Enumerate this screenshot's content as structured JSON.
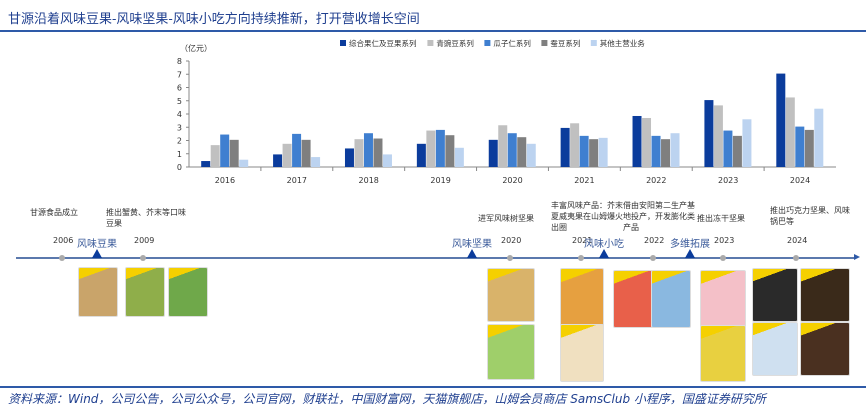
{
  "title": "甘源沿着风味豆果-风味坚果-风味小吃方向持续推新，打开营收增长空间",
  "source": "资料来源：Wind，公司公告，公司公众号，公司官网，财联社，中国财富网，天猫旗舰店，山姆会员商店 SamsClub 小程序，国盛证券研究所",
  "chart_data": {
    "type": "bar",
    "ylabel": "（亿元）",
    "ylim": [
      0,
      8
    ],
    "yticks": [
      0,
      1,
      2,
      3,
      4,
      5,
      6,
      7,
      8
    ],
    "grid": false,
    "legend": "top",
    "categories": [
      "2016",
      "2017",
      "2018",
      "2019",
      "2020",
      "2021",
      "2022",
      "2023",
      "2024"
    ],
    "series": [
      {
        "name": "综合果仁及豆果系列",
        "color": "#0b3c9c",
        "values": [
          0.45,
          0.95,
          1.4,
          1.75,
          2.05,
          2.95,
          3.85,
          5.05,
          7.05
        ]
      },
      {
        "name": "青豌豆系列",
        "color": "#c0c0c0",
        "values": [
          1.65,
          1.75,
          2.1,
          2.75,
          3.15,
          3.3,
          3.7,
          4.65,
          5.25
        ]
      },
      {
        "name": "瓜子仁系列",
        "color": "#3f7fd0",
        "values": [
          2.45,
          2.5,
          2.55,
          2.8,
          2.55,
          2.35,
          2.35,
          2.75,
          3.05
        ]
      },
      {
        "name": "蚕豆系列",
        "color": "#7f7f7f",
        "values": [
          2.05,
          2.05,
          2.15,
          2.4,
          2.25,
          2.1,
          2.1,
          2.35,
          2.8
        ]
      },
      {
        "name": "其他主营业务",
        "color": "#bcd3f0",
        "values": [
          0.55,
          0.75,
          0.95,
          1.45,
          1.75,
          2.2,
          2.55,
          3.6,
          4.4
        ]
      }
    ]
  },
  "timeline": {
    "phases": [
      "风味豆果",
      "风味坚果",
      "风味小吃",
      "多维拓展"
    ],
    "events": [
      {
        "year": "2006",
        "text": "甘源食品成立"
      },
      {
        "year": "2009",
        "text": "推出蟹黄、芥末等口味豆果"
      },
      {
        "year": "2020",
        "text": "进军风味树坚果"
      },
      {
        "year": "2021",
        "text": "丰富风味产品：芥末夏威夷果在山姆爆火出圈"
      },
      {
        "year": "2022",
        "text": "借由安阳第二生产基地投产，开发膨化类产品"
      },
      {
        "year": "2023",
        "text": "推出冻干坚果"
      },
      {
        "year": "2024",
        "text": "推出巧克力坚果、风味锅巴等"
      }
    ]
  }
}
